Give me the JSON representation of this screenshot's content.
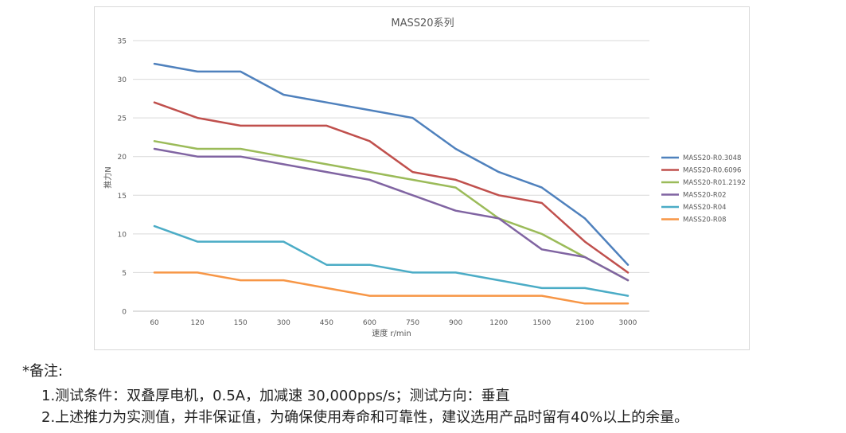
{
  "chart_data": {
    "type": "line",
    "title": "MASS20系列",
    "xlabel": "速度 r/min",
    "ylabel": "推力N",
    "categories": [
      "60",
      "120",
      "150",
      "300",
      "450",
      "600",
      "750",
      "900",
      "1200",
      "1500",
      "2100",
      "3000"
    ],
    "ylim": [
      0,
      35
    ],
    "yticks": [
      "0",
      "5",
      "10",
      "15",
      "20",
      "25",
      "30",
      "35"
    ],
    "grid": true,
    "legend_position": "right",
    "series": [
      {
        "name": "MASS20-R0.3048",
        "color": "#4f81bd",
        "values": [
          32,
          31,
          31,
          28,
          27,
          26,
          25,
          21,
          18,
          16,
          12,
          6
        ]
      },
      {
        "name": "MASS20-R0.6096",
        "color": "#c0504d",
        "values": [
          27,
          25,
          24,
          24,
          24,
          22,
          18,
          17,
          15,
          14,
          9,
          5
        ]
      },
      {
        "name": "MASS20-R01.2192",
        "color": "#9bbb59",
        "values": [
          22,
          21,
          21,
          20,
          19,
          18,
          17,
          16,
          12,
          10,
          7,
          4
        ]
      },
      {
        "name": "MASS20-R02",
        "color": "#8064a2",
        "values": [
          21,
          20,
          20,
          19,
          18,
          17,
          15,
          13,
          12,
          8,
          7,
          4
        ]
      },
      {
        "name": "MASS20-R04",
        "color": "#4bacc6",
        "values": [
          11,
          9,
          9,
          9,
          6,
          6,
          5,
          5,
          4,
          3,
          3,
          2
        ]
      },
      {
        "name": "MASS20-R08",
        "color": "#f79646",
        "values": [
          5,
          5,
          4,
          4,
          3,
          2,
          2,
          2,
          2,
          2,
          1,
          1
        ]
      }
    ]
  },
  "notes": {
    "title": "*备注:",
    "line1": "1.测试条件：双叠厚电机，0.5A，加减速 30,000pps/s；测试方向：垂直",
    "line2": "2.上述推力为实测值，并非保证值，为确保使用寿命和可靠性，建议选用产品时留有40%以上的余量。"
  }
}
